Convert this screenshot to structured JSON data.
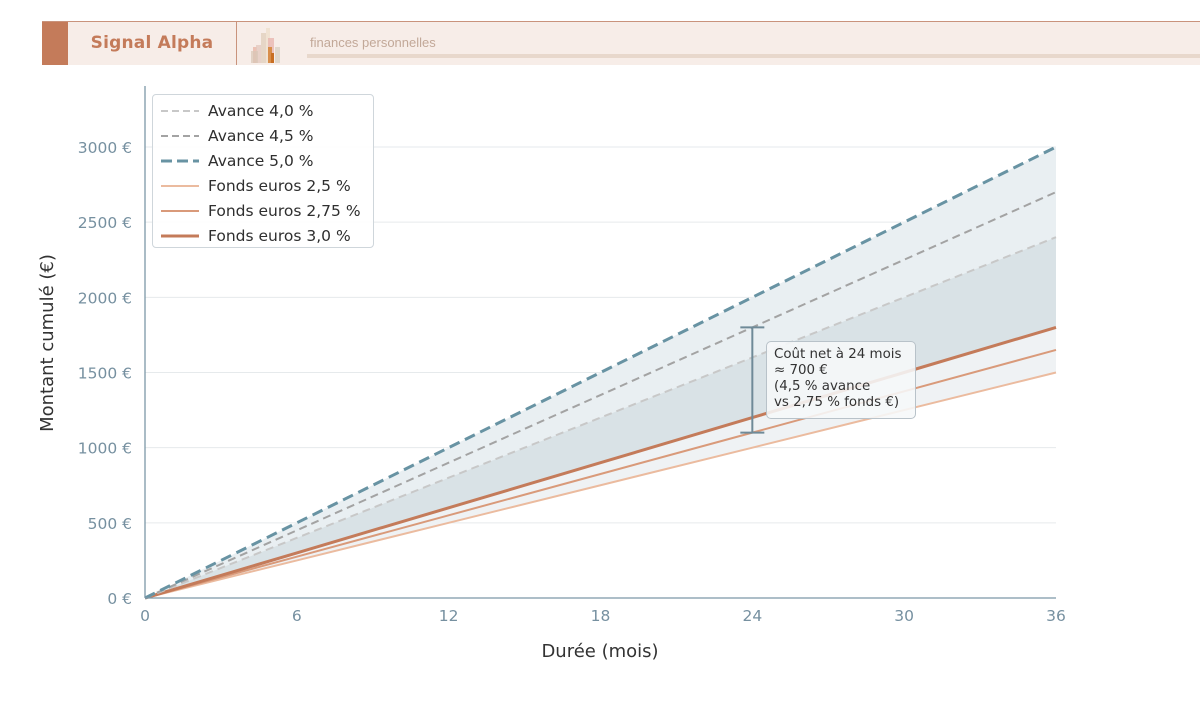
{
  "header": {
    "brand": "Signal Alpha",
    "subtitle": "finances personnelles",
    "accent_color": "#c47b5a",
    "background_color": "#f7ede8"
  },
  "chart_data": {
    "type": "line",
    "title": "",
    "xlabel": "Durée (mois)",
    "ylabel": "Montant cumulé (€)",
    "xlim": [
      0,
      36
    ],
    "ylim": [
      0,
      3300
    ],
    "x_ticks": [
      0,
      6,
      12,
      18,
      24,
      30,
      36
    ],
    "x_tick_labels": [
      "0",
      "6",
      "12",
      "18",
      "24",
      "30",
      "36"
    ],
    "y_ticks": [
      0,
      500,
      1000,
      1500,
      2000,
      2500,
      3000
    ],
    "y_tick_labels": [
      "0 €",
      "500 €",
      "1000 €",
      "1500 €",
      "2000 €",
      "2500 €",
      "3000 €"
    ],
    "grid": true,
    "legend_position": "upper left",
    "x": [
      0,
      6,
      12,
      18,
      24,
      30,
      36
    ],
    "series": [
      {
        "name": "Avance 4,0 %",
        "values": [
          0,
          400,
          800,
          1200,
          1600,
          2000,
          2400
        ],
        "color": "#c8c8c8",
        "style": "dashed",
        "width": 2
      },
      {
        "name": "Avance 4,5 %",
        "values": [
          0,
          450,
          900,
          1350,
          1800,
          2250,
          2700
        ],
        "color": "#a3a3a3",
        "style": "dashed",
        "width": 2
      },
      {
        "name": "Avance 5,0 %",
        "values": [
          0,
          500,
          1000,
          1500,
          2000,
          2500,
          3000
        ],
        "color": "#6893a3",
        "style": "dashed",
        "width": 3
      },
      {
        "name": "Fonds euros 2,5 %",
        "values": [
          0,
          250,
          500,
          750,
          1000,
          1250,
          1500
        ],
        "color": "#ebbb9f",
        "style": "solid",
        "width": 2
      },
      {
        "name": "Fonds euros 2,75 %",
        "values": [
          0,
          275,
          550,
          825,
          1100,
          1375,
          1650
        ],
        "color": "#d99a7a",
        "style": "solid",
        "width": 2
      },
      {
        "name": "Fonds euros 3,0 %",
        "values": [
          0,
          300,
          600,
          900,
          1200,
          1500,
          1800
        ],
        "color": "#c47b5a",
        "style": "solid",
        "width": 3
      }
    ],
    "fills": [
      {
        "between": [
          "Avance 4,0 %",
          "Avance 5,0 %"
        ],
        "color": "#e9eff2"
      },
      {
        "between": [
          "Fonds euros 3,0 %",
          "Avance 4,0 %"
        ],
        "color": "#d9e2e6"
      },
      {
        "between": [
          "Fonds euros 2,5 %",
          "Fonds euros 3,0 %"
        ],
        "color": "#eff2f4"
      }
    ],
    "annotation": {
      "x": 24,
      "y_from": 1100,
      "y_to": 1800,
      "lines": [
        "Coût net à 24 mois",
        "≈ 700 €",
        "(4,5 % avance",
        "vs 2,75 % fonds €)"
      ]
    }
  }
}
